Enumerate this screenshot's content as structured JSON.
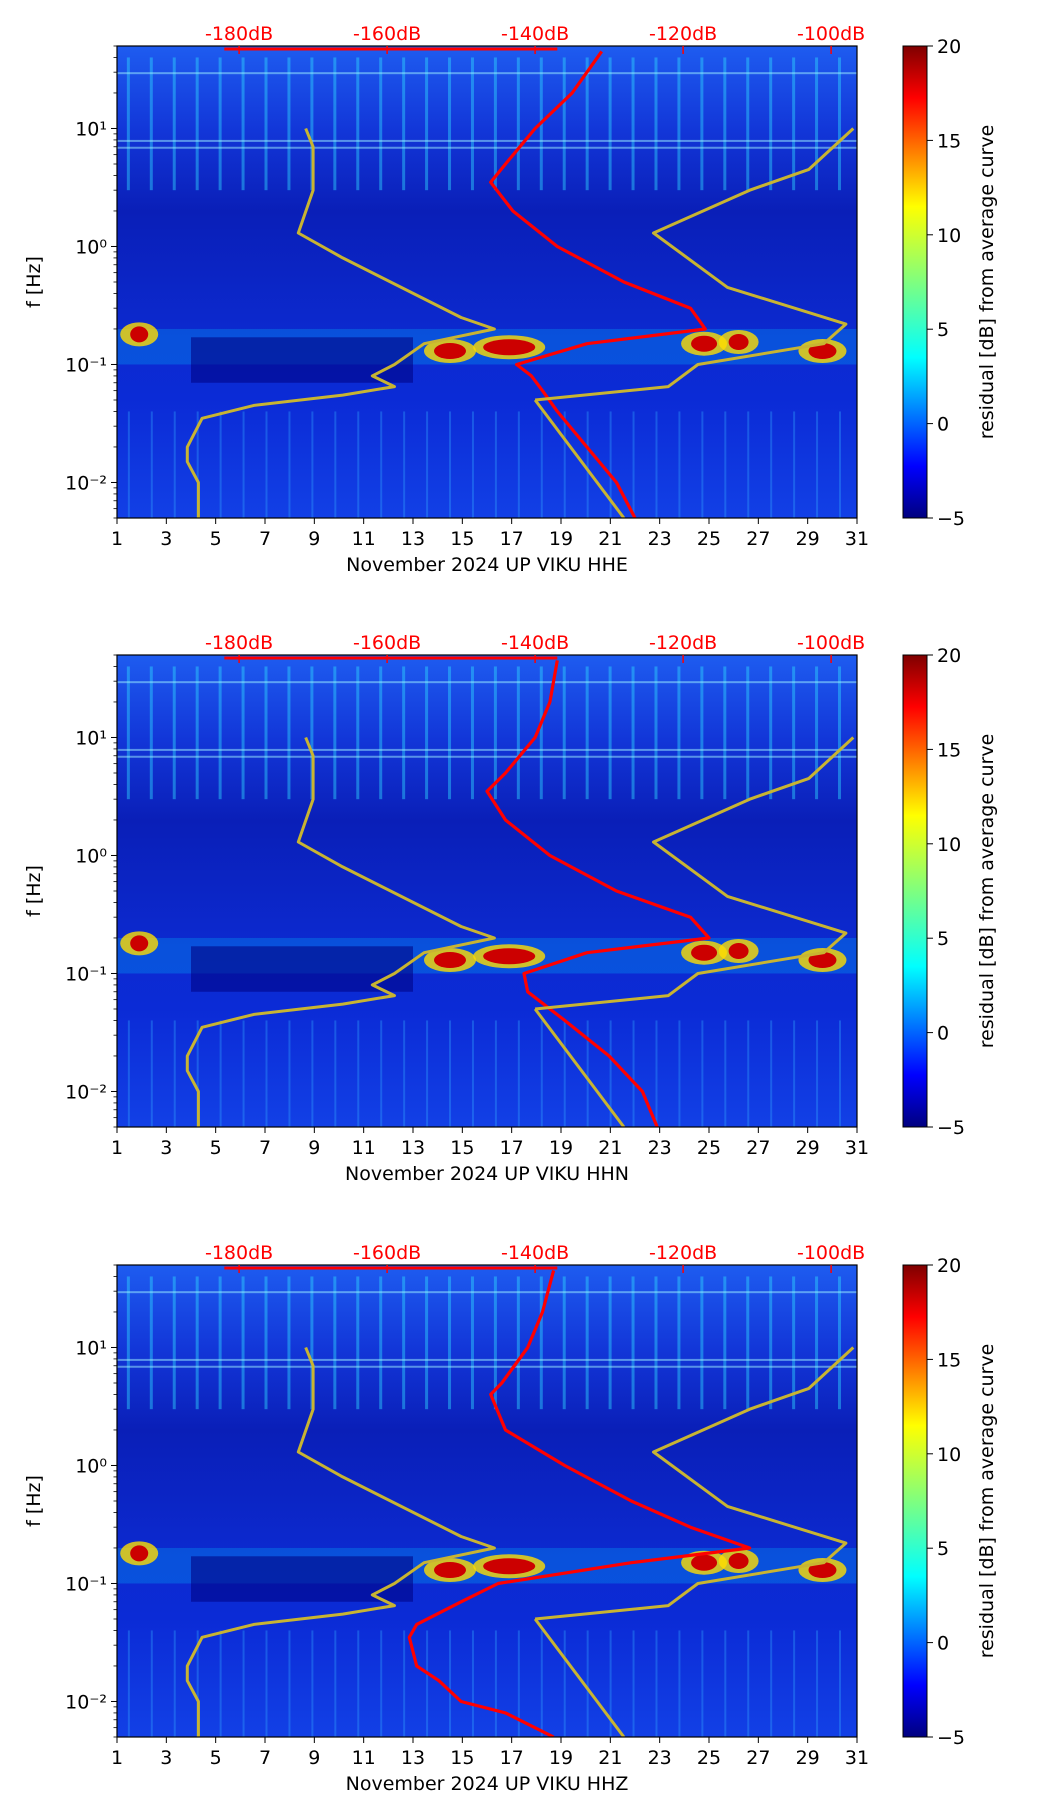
{
  "chart_data": [
    {
      "type": "heatmap",
      "xlabel": "November 2024 UP VIKU  HHE",
      "ylabel": "f [Hz]",
      "xlim": [
        1,
        31
      ],
      "ylim": [
        0.005,
        50
      ],
      "yscale": "log",
      "xticks": [
        "1",
        "3",
        "5",
        "7",
        "9",
        "11",
        "13",
        "15",
        "17",
        "19",
        "21",
        "23",
        "25",
        "27",
        "29",
        "31"
      ],
      "yticks": [
        "10⁻²",
        "10⁻¹",
        "10⁰",
        "10¹"
      ],
      "db_axis": {
        "labels": [
          "-180dB",
          "-160dB",
          "-140dB",
          "-120dB",
          "-100dB"
        ],
        "color": "#ff0000"
      },
      "colorbar": {
        "label": "residual [dB] from average curve",
        "range": [
          -5,
          20
        ],
        "ticks": [
          "−5",
          "0",
          "5",
          "10",
          "15",
          "20"
        ],
        "colormap": "jet"
      },
      "series": [
        {
          "color": "#ff0000",
          "role": "PSD curve (dB axis)",
          "points": [
            [
              0.005,
              -126.5
            ],
            [
              0.01,
              -129
            ],
            [
              0.02,
              -133
            ],
            [
              0.04,
              -137
            ],
            [
              0.06,
              -139
            ],
            [
              0.08,
              -140.5
            ],
            [
              0.1,
              -142.5
            ],
            [
              0.15,
              -133
            ],
            [
              0.2,
              -117
            ],
            [
              0.3,
              -119
            ],
            [
              0.5,
              -128
            ],
            [
              1,
              -137
            ],
            [
              2,
              -143
            ],
            [
              3.5,
              -146
            ],
            [
              5,
              -144
            ],
            [
              10,
              -140
            ],
            [
              20,
              -135
            ],
            [
              45,
              -131
            ]
          ]
        },
        {
          "color": "#c8b432",
          "role": "low noise model",
          "points": [
            [
              0.005,
              -185.5
            ],
            [
              0.01,
              -185.5
            ],
            [
              0.015,
              -187
            ],
            [
              0.02,
              -187
            ],
            [
              0.035,
              -185
            ],
            [
              0.045,
              -178
            ],
            [
              0.055,
              -166
            ],
            [
              0.065,
              -159
            ],
            [
              0.08,
              -162
            ],
            [
              0.1,
              -159
            ],
            [
              0.15,
              -155
            ],
            [
              0.2,
              -145.5
            ],
            [
              0.25,
              -150
            ],
            [
              0.8,
              -166
            ],
            [
              1.3,
              -172
            ],
            [
              3,
              -170
            ],
            [
              7,
              -170
            ],
            [
              10,
              -171
            ]
          ]
        },
        {
          "color": "#c8b432",
          "role": "high noise model",
          "points": [
            [
              0.05,
              -140
            ],
            [
              0.065,
              -122
            ],
            [
              0.1,
              -118
            ],
            [
              0.15,
              -101
            ],
            [
              0.22,
              -98
            ],
            [
              0.45,
              -114
            ],
            [
              1.3,
              -124
            ],
            [
              3,
              -111
            ],
            [
              4.5,
              -103
            ],
            [
              10,
              -97
            ]
          ]
        },
        {
          "color": "#c8b432",
          "role": "high noise model (lower tail)",
          "points": [
            [
              0.005,
              -128
            ],
            [
              0.05,
              -140
            ]
          ]
        }
      ]
    },
    {
      "type": "heatmap",
      "xlabel": "November 2024 UP VIKU  HHN",
      "ylabel": "f [Hz]",
      "xlim": [
        1,
        31
      ],
      "ylim": [
        0.005,
        50
      ],
      "yscale": "log",
      "xticks": [
        "1",
        "3",
        "5",
        "7",
        "9",
        "11",
        "13",
        "15",
        "17",
        "19",
        "21",
        "23",
        "25",
        "27",
        "29",
        "31"
      ],
      "yticks": [
        "10⁻²",
        "10⁻¹",
        "10⁰",
        "10¹"
      ],
      "db_axis": {
        "labels": [
          "-180dB",
          "-160dB",
          "-140dB",
          "-120dB",
          "-100dB"
        ],
        "color": "#ff0000"
      },
      "colorbar": {
        "label": "residual [dB] from average curve",
        "range": [
          -5,
          20
        ],
        "ticks": [
          "−5",
          "0",
          "5",
          "10",
          "15",
          "20"
        ],
        "colormap": "jet"
      },
      "series": [
        {
          "color": "#ff0000",
          "role": "PSD curve (dB axis)",
          "points": [
            [
              0.005,
              -123.5
            ],
            [
              0.01,
              -125.5
            ],
            [
              0.02,
              -130
            ],
            [
              0.04,
              -136
            ],
            [
              0.07,
              -141
            ],
            [
              0.1,
              -141.5
            ],
            [
              0.15,
              -133
            ],
            [
              0.2,
              -116.5
            ],
            [
              0.3,
              -119
            ],
            [
              0.5,
              -129
            ],
            [
              1,
              -138
            ],
            [
              2,
              -144
            ],
            [
              3.5,
              -146.5
            ],
            [
              5,
              -144
            ],
            [
              10,
              -140
            ],
            [
              20,
              -138
            ],
            [
              45,
              -137
            ]
          ]
        },
        {
          "color": "#c8b432",
          "role": "low noise model",
          "points": [
            [
              0.005,
              -185.5
            ],
            [
              0.01,
              -185.5
            ],
            [
              0.015,
              -187
            ],
            [
              0.02,
              -187
            ],
            [
              0.035,
              -185
            ],
            [
              0.045,
              -178
            ],
            [
              0.055,
              -166
            ],
            [
              0.065,
              -159
            ],
            [
              0.08,
              -162
            ],
            [
              0.1,
              -159
            ],
            [
              0.15,
              -155
            ],
            [
              0.2,
              -145.5
            ],
            [
              0.25,
              -150
            ],
            [
              0.8,
              -166
            ],
            [
              1.3,
              -172
            ],
            [
              3,
              -170
            ],
            [
              7,
              -170
            ],
            [
              10,
              -171
            ]
          ]
        },
        {
          "color": "#c8b432",
          "role": "high noise model",
          "points": [
            [
              0.05,
              -140
            ],
            [
              0.065,
              -122
            ],
            [
              0.1,
              -118
            ],
            [
              0.15,
              -101
            ],
            [
              0.22,
              -98
            ],
            [
              0.45,
              -114
            ],
            [
              1.3,
              -124
            ],
            [
              3,
              -111
            ],
            [
              4.5,
              -103
            ],
            [
              10,
              -97
            ]
          ]
        },
        {
          "color": "#c8b432",
          "role": "high noise model (lower tail)",
          "points": [
            [
              0.005,
              -128
            ],
            [
              0.05,
              -140
            ]
          ]
        }
      ]
    },
    {
      "type": "heatmap",
      "xlabel": "November 2024 UP VIKU  HHZ",
      "ylabel": "f [Hz]",
      "xlim": [
        1,
        31
      ],
      "ylim": [
        0.005,
        50
      ],
      "yscale": "log",
      "xticks": [
        "1",
        "3",
        "5",
        "7",
        "9",
        "11",
        "13",
        "15",
        "17",
        "19",
        "21",
        "23",
        "25",
        "27",
        "29",
        "31"
      ],
      "yticks": [
        "10⁻²",
        "10⁻¹",
        "10⁰",
        "10¹"
      ],
      "db_axis": {
        "labels": [
          "-180dB",
          "-160dB",
          "-140dB",
          "-120dB",
          "-100dB"
        ],
        "color": "#ff0000"
      },
      "colorbar": {
        "label": "residual [dB] from average curve",
        "range": [
          -5,
          20
        ],
        "ticks": [
          "−5",
          "0",
          "5",
          "10",
          "15",
          "20"
        ],
        "colormap": "jet"
      },
      "series": [
        {
          "color": "#ff0000",
          "role": "PSD curve (dB axis)",
          "points": [
            [
              0.005,
              -137.5
            ],
            [
              0.008,
              -144
            ],
            [
              0.01,
              -150
            ],
            [
              0.015,
              -153
            ],
            [
              0.02,
              -156
            ],
            [
              0.035,
              -157
            ],
            [
              0.045,
              -156
            ],
            [
              0.07,
              -150
            ],
            [
              0.1,
              -145
            ],
            [
              0.15,
              -127
            ],
            [
              0.2,
              -111
            ],
            [
              0.3,
              -119
            ],
            [
              0.5,
              -127
            ],
            [
              1,
              -136
            ],
            [
              2,
              -144
            ],
            [
              4,
              -146
            ],
            [
              5,
              -144.5
            ],
            [
              10,
              -141
            ],
            [
              20,
              -139
            ],
            [
              45,
              -137.5
            ]
          ]
        },
        {
          "color": "#c8b432",
          "role": "low noise model",
          "points": [
            [
              0.005,
              -185.5
            ],
            [
              0.01,
              -185.5
            ],
            [
              0.015,
              -187
            ],
            [
              0.02,
              -187
            ],
            [
              0.035,
              -185
            ],
            [
              0.045,
              -178
            ],
            [
              0.055,
              -166
            ],
            [
              0.065,
              -159
            ],
            [
              0.08,
              -162
            ],
            [
              0.1,
              -159
            ],
            [
              0.15,
              -155
            ],
            [
              0.2,
              -145.5
            ],
            [
              0.25,
              -150
            ],
            [
              0.8,
              -166
            ],
            [
              1.3,
              -172
            ],
            [
              3,
              -170
            ],
            [
              7,
              -170
            ],
            [
              10,
              -171
            ]
          ]
        },
        {
          "color": "#c8b432",
          "role": "high noise model",
          "points": [
            [
              0.05,
              -140
            ],
            [
              0.065,
              -122
            ],
            [
              0.1,
              -118
            ],
            [
              0.15,
              -101
            ],
            [
              0.22,
              -98
            ],
            [
              0.45,
              -114
            ],
            [
              1.3,
              -124
            ],
            [
              3,
              -111
            ],
            [
              4.5,
              -103
            ],
            [
              10,
              -97
            ]
          ]
        },
        {
          "color": "#c8b432",
          "role": "high noise model (lower tail)",
          "points": [
            [
              0.005,
              -128
            ],
            [
              0.05,
              -140
            ]
          ]
        }
      ]
    }
  ]
}
